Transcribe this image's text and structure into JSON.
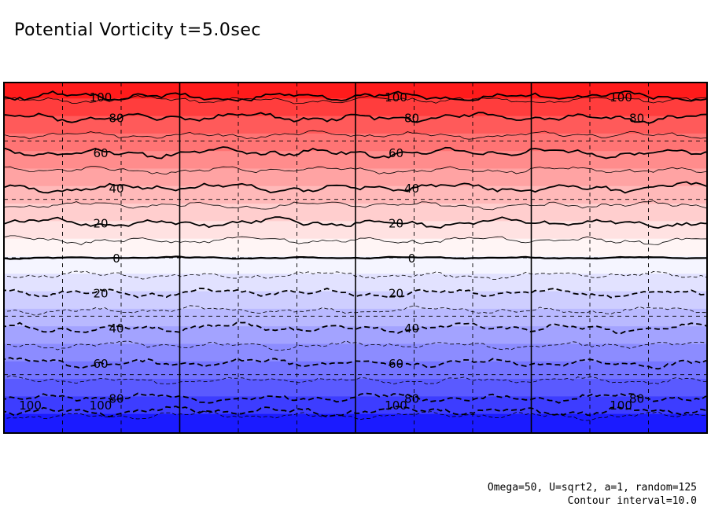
{
  "page": {
    "title": "Potential Vorticity t=5.0sec"
  },
  "notes": {
    "params": "Omega=50, U=sqrt2, a=1, random=125",
    "interval": "Contour interval=10.0"
  },
  "colors": {
    "high": "#ff0000",
    "zero": "#ffffff",
    "low": "#0000ff",
    "contour": "#000000",
    "grid": "#000000"
  },
  "chart_data": {
    "type": "heatmap",
    "title": "Potential Vorticity t=5.0sec",
    "xlabel": "",
    "ylabel": "",
    "value_range": [
      -100,
      100
    ],
    "contour_interval": 10,
    "grid": true,
    "x_divisions": 12,
    "y_divisions": 6,
    "profile": {
      "y": [
        1.0,
        0.8,
        0.6,
        0.4,
        0.2,
        0.0,
        -0.2,
        -0.4,
        -0.6,
        -0.8,
        -1.0
      ],
      "value": [
        100,
        80,
        60,
        40,
        20,
        0,
        -20,
        -40,
        -60,
        -80,
        -100
      ]
    },
    "contour_labels": [
      {
        "value": 100,
        "text": "100"
      },
      {
        "value": 100,
        "text": "100"
      },
      {
        "value": 100,
        "text": "100"
      },
      {
        "value": 80,
        "text": "80"
      },
      {
        "value": 80,
        "text": "80"
      },
      {
        "value": 80,
        "text": "80"
      },
      {
        "value": 60,
        "text": "60"
      },
      {
        "value": 60,
        "text": "60"
      },
      {
        "value": 40,
        "text": "40"
      },
      {
        "value": 40,
        "text": "40"
      },
      {
        "value": 20,
        "text": "20"
      },
      {
        "value": 20,
        "text": "20"
      },
      {
        "value": 0,
        "text": "0"
      },
      {
        "value": 0,
        "text": "0"
      },
      {
        "value": -20,
        "text": "20"
      },
      {
        "value": -20,
        "text": "20"
      },
      {
        "value": -40,
        "text": "40"
      },
      {
        "value": -40,
        "text": "40"
      },
      {
        "value": -60,
        "text": "60"
      },
      {
        "value": -60,
        "text": "60"
      },
      {
        "value": -80,
        "text": "80"
      },
      {
        "value": -80,
        "text": "80"
      },
      {
        "value": -80,
        "text": "80"
      },
      {
        "value": -100,
        "text": "100"
      },
      {
        "value": -100,
        "text": "100"
      },
      {
        "value": -100,
        "text": "100"
      },
      {
        "value": -100,
        "text": "100"
      }
    ]
  }
}
